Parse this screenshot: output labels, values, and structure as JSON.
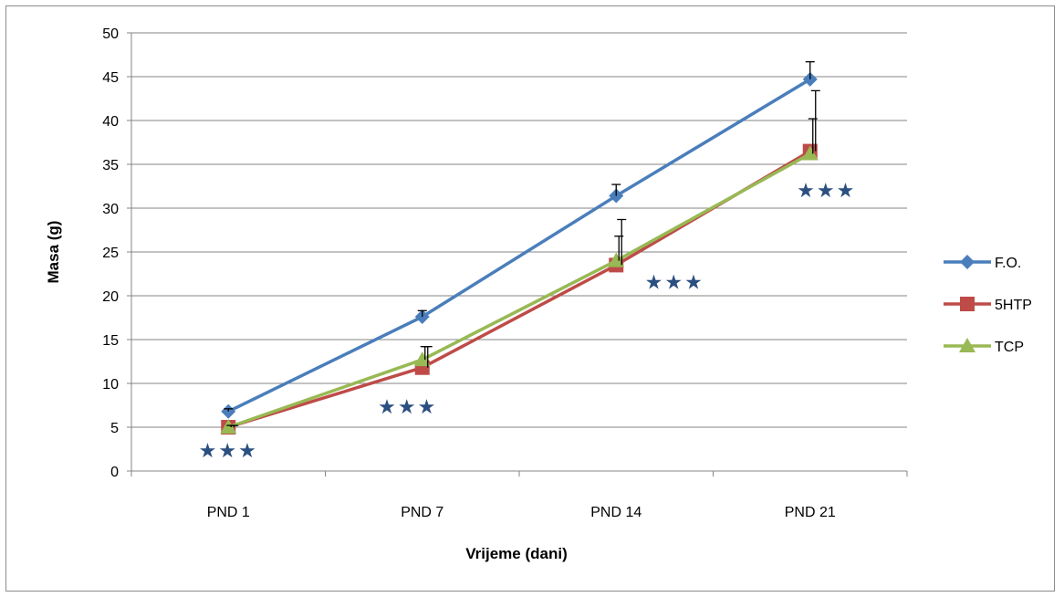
{
  "chart_data": {
    "type": "line",
    "title": "",
    "xlabel": "Vrijeme (dani)",
    "ylabel": "Masa  (g)",
    "categories": [
      "PND 1",
      "PND 7",
      "PND 14",
      "PND 21"
    ],
    "ylim": [
      0,
      50
    ],
    "yticks": [
      0,
      5,
      10,
      15,
      20,
      25,
      30,
      35,
      40,
      45,
      50
    ],
    "grid": "horizontal",
    "legend_position": "right",
    "series": [
      {
        "name": "F.O.",
        "color": "#4a7ebb",
        "marker": "diamond",
        "values": [
          6.8,
          17.6,
          31.4,
          44.7
        ],
        "error": [
          0.3,
          0.7,
          1.3,
          2.0
        ]
      },
      {
        "name": "5HTP",
        "color": "#be4b48",
        "marker": "square",
        "values": [
          5.0,
          11.8,
          23.5,
          36.5
        ],
        "error": [
          0.2,
          2.4,
          5.2,
          6.9
        ]
      },
      {
        "name": "TCP",
        "color": "#98b954",
        "marker": "triangle",
        "values": [
          5.0,
          12.7,
          24.0,
          36.2
        ],
        "error": [
          0.2,
          1.5,
          2.8,
          4.0
        ]
      }
    ],
    "annotations": [
      {
        "text": "★★★",
        "category": "PND 1",
        "y": 2.4
      },
      {
        "text": "★★★",
        "category": "PND 7",
        "y": 7.4
      },
      {
        "text": "★★★",
        "category": "PND 14",
        "y": 21.6
      },
      {
        "text": "★★★",
        "category": "PND 21",
        "y": 32.1
      }
    ]
  }
}
